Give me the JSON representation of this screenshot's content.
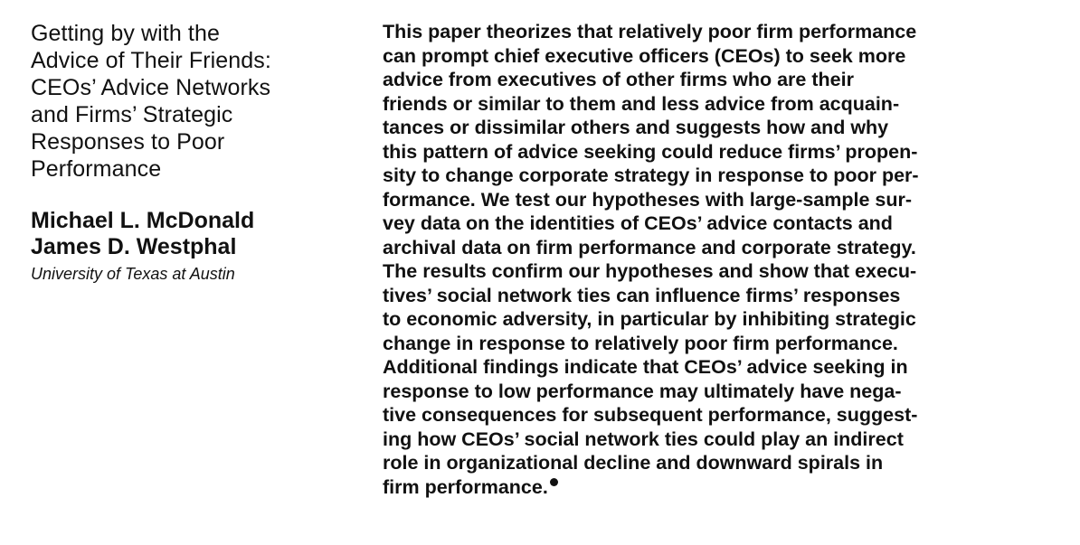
{
  "title_lines": [
    "Getting by with the",
    "Advice of Their Friends:",
    "CEOs’ Advice Networks",
    "and Firms’ Strategic",
    "Responses to Poor",
    "Performance"
  ],
  "authors": [
    "Michael L. McDonald",
    "James D. Westphal"
  ],
  "affiliation": "University of Texas at Austin",
  "abstract_lines": [
    "This paper theorizes that relatively poor firm performance",
    "can prompt chief executive officers (CEOs) to seek more",
    "advice from executives of other firms who are their",
    "friends or similar to them and less advice from acquain-",
    "tances or dissimilar others and suggests how and why",
    "this pattern of advice seeking could reduce firms’ propen-",
    "sity to change corporate strategy in response to poor per-",
    "formance. We test our hypotheses with large-sample sur-",
    "vey data on the identities of CEOs’ advice contacts and",
    "archival data on firm performance and corporate strategy.",
    "The results confirm our hypotheses and show that execu-",
    "tives’ social network ties can influence firms’ responses",
    "to economic adversity, in particular by inhibiting strategic",
    "change in response to relatively poor firm performance.",
    "Additional findings indicate that CEOs’ advice seeking in",
    "response to low performance may ultimately have nega-",
    "tive consequences for subsequent performance, suggest-",
    "ing how CEOs’ social network ties could play an indirect",
    "role in organizational decline and downward spirals in",
    "firm performance."
  ]
}
